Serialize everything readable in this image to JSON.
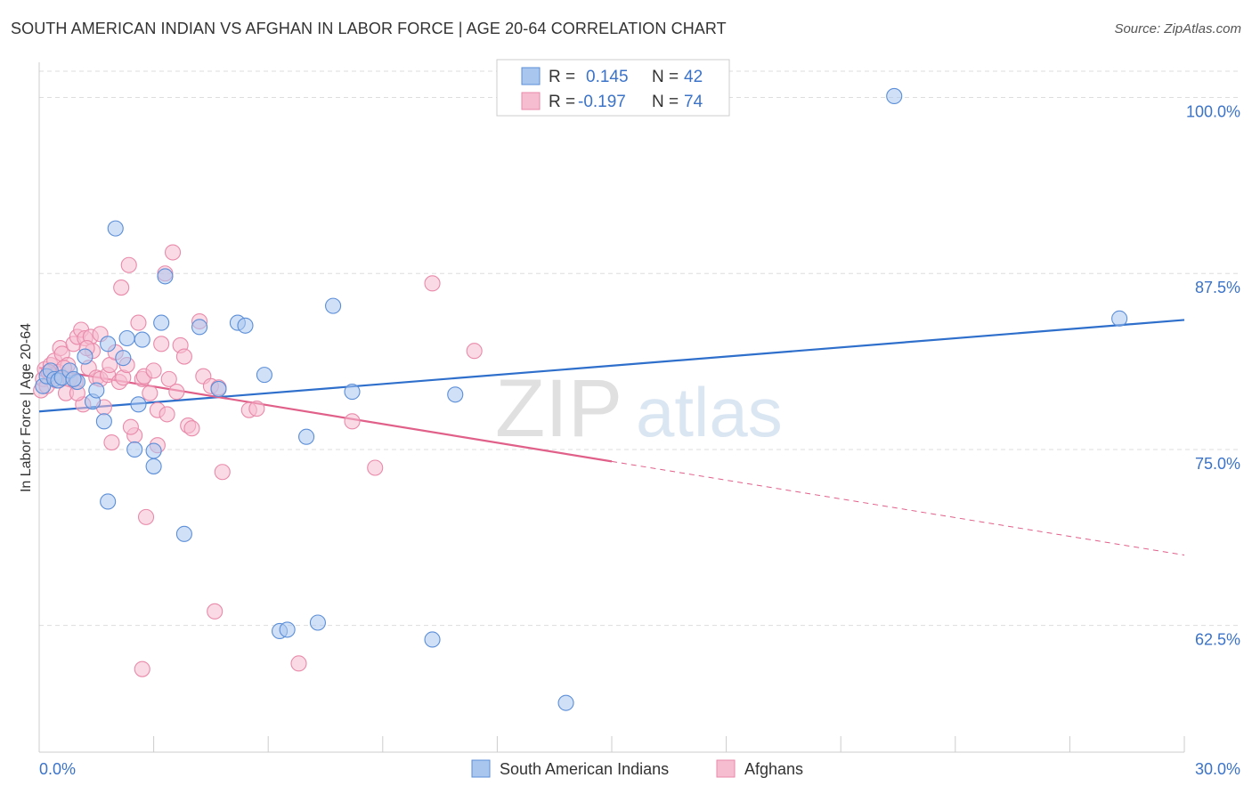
{
  "header": {
    "title": "SOUTH AMERICAN INDIAN VS AFGHAN IN LABOR FORCE | AGE 20-64 CORRELATION CHART",
    "source": "Source: ZipAtlas.com"
  },
  "watermark": {
    "zip": "ZIP",
    "atlas": "atlas"
  },
  "colors": {
    "blue_fill": "#a9c6ee",
    "blue_stroke": "#5b8ed8",
    "blue_line": "#2f6fcc",
    "pink_fill": "#f6bcd0",
    "pink_stroke": "#e98aaa",
    "pink_line": "#e0608a",
    "value_text": "#3b73c9",
    "grid": "#dddddd"
  },
  "chart_data": {
    "type": "scatter",
    "title": "SOUTH AMERICAN INDIAN VS AFGHAN IN LABOR FORCE | AGE 20-64 CORRELATION CHART",
    "xlabel": "",
    "ylabel": "In Labor Force | Age 20-64",
    "xlim": [
      0,
      30
    ],
    "ylim": [
      53.5,
      102.5
    ],
    "x_tick_labels": [
      "0.0%",
      "30.0%"
    ],
    "y_ticks": [
      62.5,
      75.0,
      87.5,
      100.0
    ],
    "y_tick_labels": [
      "62.5%",
      "75.0%",
      "87.5%",
      "100.0%"
    ],
    "grid": "horizontal dashed",
    "legend_position": "top-center",
    "series": [
      {
        "name": "South American Indians",
        "r_label": "R =",
        "r_value": "0.145",
        "n_label": "N =",
        "n_value": "42",
        "trend": {
          "x": [
            0,
            30
          ],
          "y": [
            77.7,
            84.2
          ],
          "dashed_from": null
        },
        "points": [
          [
            0.1,
            79.5
          ],
          [
            0.2,
            80.2
          ],
          [
            0.3,
            80.6
          ],
          [
            0.4,
            80.0
          ],
          [
            0.5,
            79.9
          ],
          [
            0.6,
            80.1
          ],
          [
            0.8,
            80.6
          ],
          [
            1.0,
            79.8
          ],
          [
            1.2,
            81.6
          ],
          [
            1.4,
            78.4
          ],
          [
            1.5,
            79.2
          ],
          [
            1.8,
            82.5
          ],
          [
            2.0,
            90.7
          ],
          [
            2.2,
            81.5
          ],
          [
            2.3,
            82.9
          ],
          [
            2.6,
            78.2
          ],
          [
            2.7,
            82.8
          ],
          [
            3.0,
            73.8
          ],
          [
            3.2,
            84.0
          ],
          [
            3.3,
            87.3
          ],
          [
            3.8,
            69.0
          ],
          [
            4.2,
            83.7
          ],
          [
            4.7,
            79.3
          ],
          [
            5.2,
            84.0
          ],
          [
            5.4,
            83.8
          ],
          [
            5.9,
            80.3
          ],
          [
            6.3,
            62.1
          ],
          [
            6.5,
            62.2
          ],
          [
            7.0,
            75.9
          ],
          [
            7.3,
            62.7
          ],
          [
            7.7,
            85.2
          ],
          [
            8.2,
            79.1
          ],
          [
            10.3,
            61.5
          ],
          [
            10.9,
            78.9
          ],
          [
            13.8,
            57.0
          ],
          [
            22.4,
            100.1
          ],
          [
            28.3,
            84.3
          ],
          [
            1.8,
            71.3
          ],
          [
            2.5,
            75.0
          ],
          [
            3.0,
            74.9
          ],
          [
            1.7,
            77.0
          ],
          [
            0.9,
            80.0
          ]
        ]
      },
      {
        "name": "Afghans",
        "r_label": "R =",
        "r_value": "-0.197",
        "n_label": "N =",
        "n_value": "74",
        "trend": {
          "x": [
            0,
            30
          ],
          "y": [
            80.8,
            67.5
          ],
          "dashed_from": 15
        },
        "points": [
          [
            0.05,
            79.2
          ],
          [
            0.1,
            80.0
          ],
          [
            0.15,
            80.7
          ],
          [
            0.2,
            79.5
          ],
          [
            0.3,
            81.0
          ],
          [
            0.35,
            80.2
          ],
          [
            0.4,
            81.3
          ],
          [
            0.5,
            80.5
          ],
          [
            0.55,
            82.2
          ],
          [
            0.6,
            81.8
          ],
          [
            0.7,
            79.0
          ],
          [
            0.75,
            81.0
          ],
          [
            0.8,
            80.0
          ],
          [
            0.9,
            82.5
          ],
          [
            0.95,
            79.8
          ],
          [
            1.0,
            83.0
          ],
          [
            1.1,
            83.5
          ],
          [
            1.15,
            78.2
          ],
          [
            1.2,
            82.9
          ],
          [
            1.3,
            80.8
          ],
          [
            1.35,
            83.0
          ],
          [
            1.4,
            82.0
          ],
          [
            1.5,
            80.1
          ],
          [
            1.6,
            80.0
          ],
          [
            1.7,
            78.0
          ],
          [
            1.8,
            80.3
          ],
          [
            1.85,
            81.0
          ],
          [
            1.9,
            75.5
          ],
          [
            2.0,
            81.9
          ],
          [
            2.1,
            79.8
          ],
          [
            2.2,
            80.1
          ],
          [
            2.3,
            81.0
          ],
          [
            2.35,
            88.1
          ],
          [
            2.5,
            76.0
          ],
          [
            2.6,
            84.0
          ],
          [
            2.7,
            80.0
          ],
          [
            2.75,
            80.2
          ],
          [
            2.8,
            70.2
          ],
          [
            2.9,
            79.0
          ],
          [
            3.0,
            80.6
          ],
          [
            3.1,
            75.3
          ],
          [
            3.2,
            82.5
          ],
          [
            3.3,
            87.5
          ],
          [
            3.4,
            80.0
          ],
          [
            3.5,
            89.0
          ],
          [
            3.6,
            79.1
          ],
          [
            3.7,
            82.4
          ],
          [
            3.8,
            81.6
          ],
          [
            3.9,
            76.7
          ],
          [
            4.0,
            76.5
          ],
          [
            4.2,
            84.1
          ],
          [
            4.3,
            80.2
          ],
          [
            4.5,
            79.5
          ],
          [
            4.6,
            63.5
          ],
          [
            4.7,
            79.4
          ],
          [
            4.8,
            73.4
          ],
          [
            5.5,
            77.8
          ],
          [
            5.7,
            77.9
          ],
          [
            6.8,
            59.8
          ],
          [
            8.2,
            77.0
          ],
          [
            8.8,
            73.7
          ],
          [
            10.3,
            86.8
          ],
          [
            11.4,
            82.0
          ],
          [
            2.7,
            59.4
          ],
          [
            1.0,
            79.0
          ],
          [
            2.4,
            76.6
          ],
          [
            1.6,
            83.2
          ],
          [
            3.1,
            77.8
          ],
          [
            0.25,
            80.5
          ],
          [
            0.45,
            79.9
          ],
          [
            1.25,
            82.2
          ],
          [
            2.15,
            86.5
          ],
          [
            3.35,
            77.5
          ],
          [
            0.65,
            80.8
          ]
        ]
      }
    ]
  }
}
